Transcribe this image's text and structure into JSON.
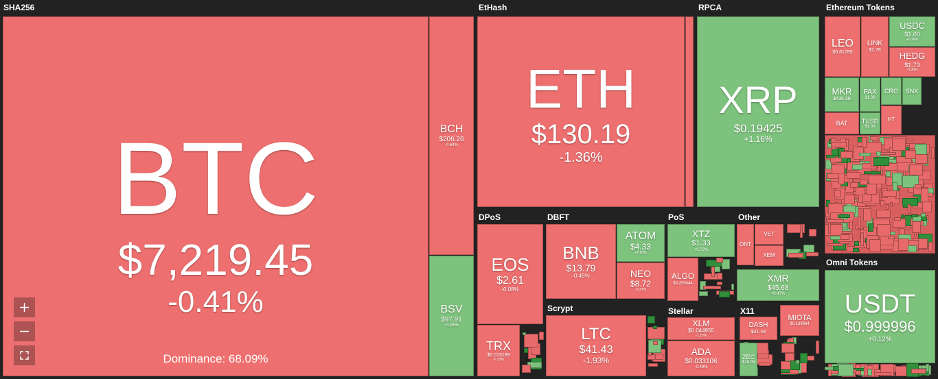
{
  "groups": [
    {
      "label": "SHA256"
    },
    {
      "label": "EtHash"
    },
    {
      "label": "RPCA"
    },
    {
      "label": "Ethereum Tokens"
    },
    {
      "label": "DPoS"
    },
    {
      "label": "DBFT"
    },
    {
      "label": "PoS"
    },
    {
      "label": "Other"
    },
    {
      "label": "Scrypt"
    },
    {
      "label": "Stellar"
    },
    {
      "label": "X11"
    },
    {
      "label": "Omni Tokens"
    }
  ],
  "tiles": [
    {
      "symbol": "BTC",
      "price": "$7,219.45",
      "change": "-0.41%"
    },
    {
      "symbol": "BCH",
      "price": "$206.26",
      "change": "-0.64%"
    },
    {
      "symbol": "BSV",
      "price": "$97.91",
      "change": "+1.86%"
    },
    {
      "symbol": "ETH",
      "price": "$130.19",
      "change": "-1.36%"
    },
    {
      "symbol": "XRP",
      "price": "$0.19425",
      "change": "+1.16%"
    },
    {
      "symbol": "EOS",
      "price": "$2.61",
      "change": "-0.08%"
    },
    {
      "symbol": "TRX",
      "price": "$0.013189",
      "change": "-0.33%"
    },
    {
      "symbol": "BNB",
      "price": "$13.79",
      "change": "-0.45%"
    },
    {
      "symbol": "ATOM",
      "price": "$4.33",
      "change": "+2.98%"
    },
    {
      "symbol": "NEO",
      "price": "$8.72",
      "change": "-3.37%"
    },
    {
      "symbol": "LTC",
      "price": "$41.43",
      "change": "-1.93%"
    },
    {
      "symbol": "XTZ",
      "price": "$1.33",
      "change": "+0.72%"
    },
    {
      "symbol": "ALGO",
      "price": "$0.255444"
    },
    {
      "symbol": "XMR",
      "price": "$45.68",
      "change": "+0.47%"
    },
    {
      "symbol": "XLM",
      "price": "$0.044955",
      "change": "-1.13%"
    },
    {
      "symbol": "ADA",
      "price": "$0.033106",
      "change": "-0.49%"
    },
    {
      "symbol": "DASH",
      "price": "$41.48"
    },
    {
      "symbol": "ZEC",
      "price": "$28.05"
    },
    {
      "symbol": "MIOTA",
      "price": "$0.139864"
    },
    {
      "symbol": "LEO",
      "price": "$0.81789"
    },
    {
      "symbol": "LINK",
      "price": "$1.78"
    },
    {
      "symbol": "USDC",
      "price": "$1.00",
      "change": "+0.26%"
    },
    {
      "symbol": "HEDG",
      "price": "$1.73",
      "change": "-0.38%"
    },
    {
      "symbol": "MKR",
      "price": "$435.38"
    },
    {
      "symbol": "PAX",
      "price": "$1.00"
    },
    {
      "symbol": "TUSD",
      "price": "$1.00"
    },
    {
      "symbol": "BAT"
    },
    {
      "symbol": "USDT",
      "price": "$0.999996",
      "change": "+0.12%"
    },
    {
      "symbol": "VET"
    },
    {
      "symbol": "XEM"
    },
    {
      "symbol": "ONT"
    },
    {
      "symbol": "CRO"
    },
    {
      "symbol": "SNX"
    },
    {
      "symbol": "HT"
    }
  ],
  "dominance": "Dominance: 68.09%"
}
